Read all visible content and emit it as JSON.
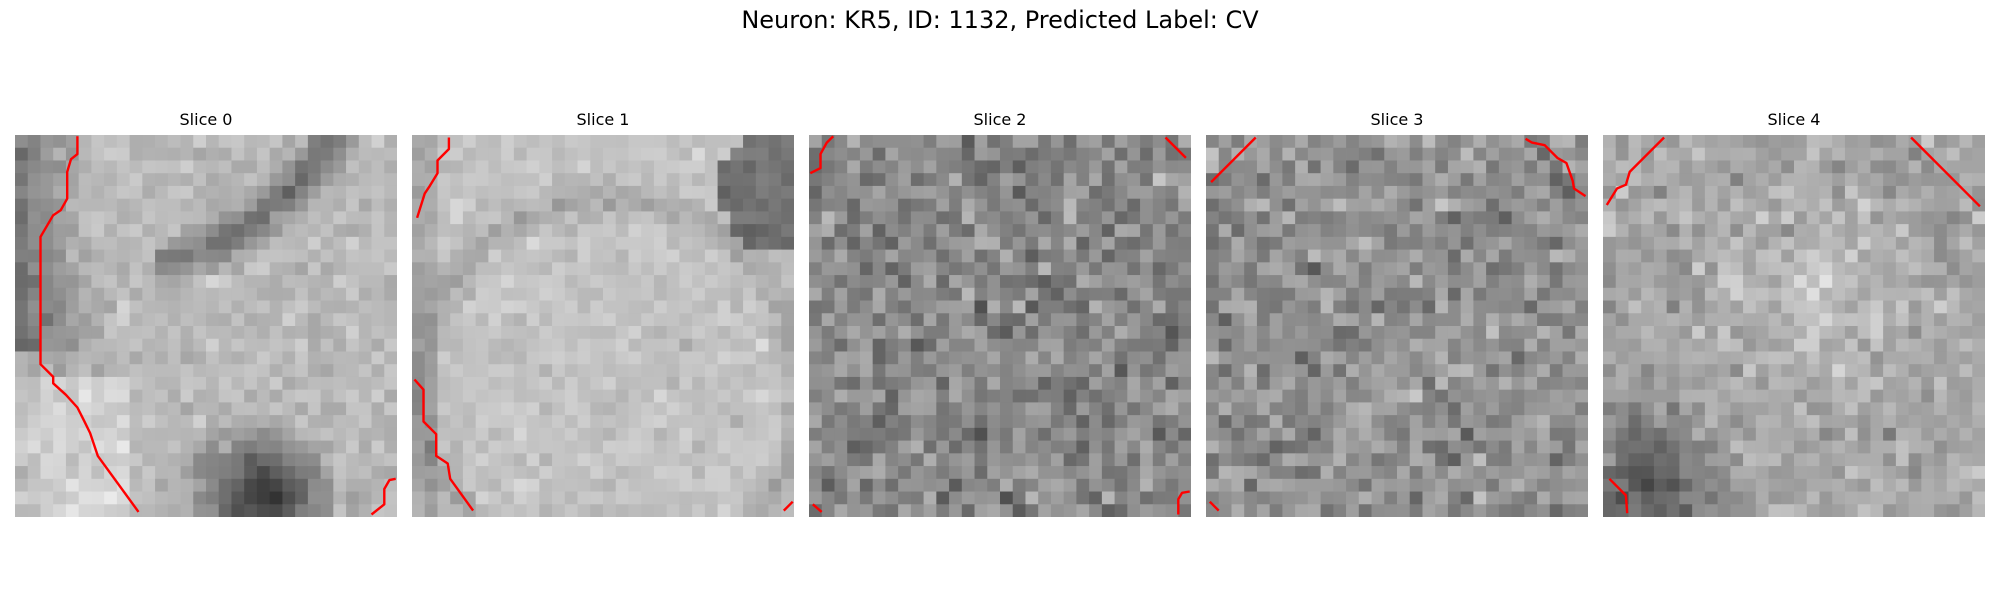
{
  "figure": {
    "title": "Neuron: KR5, ID: 1132, Predicted Label: CV"
  },
  "slices": [
    {
      "label": "Slice 0",
      "pattern": "slice0",
      "contour_color": "#ff0000"
    },
    {
      "label": "Slice 1",
      "pattern": "slice1",
      "contour_color": "#ff0000"
    },
    {
      "label": "Slice 2",
      "pattern": "slice2",
      "contour_color": "#ff0000"
    },
    {
      "label": "Slice 3",
      "pattern": "slice3",
      "contour_color": "#ff0000"
    },
    {
      "label": "Slice 4",
      "pattern": "slice4",
      "contour_color": "#ff0000"
    }
  ]
}
